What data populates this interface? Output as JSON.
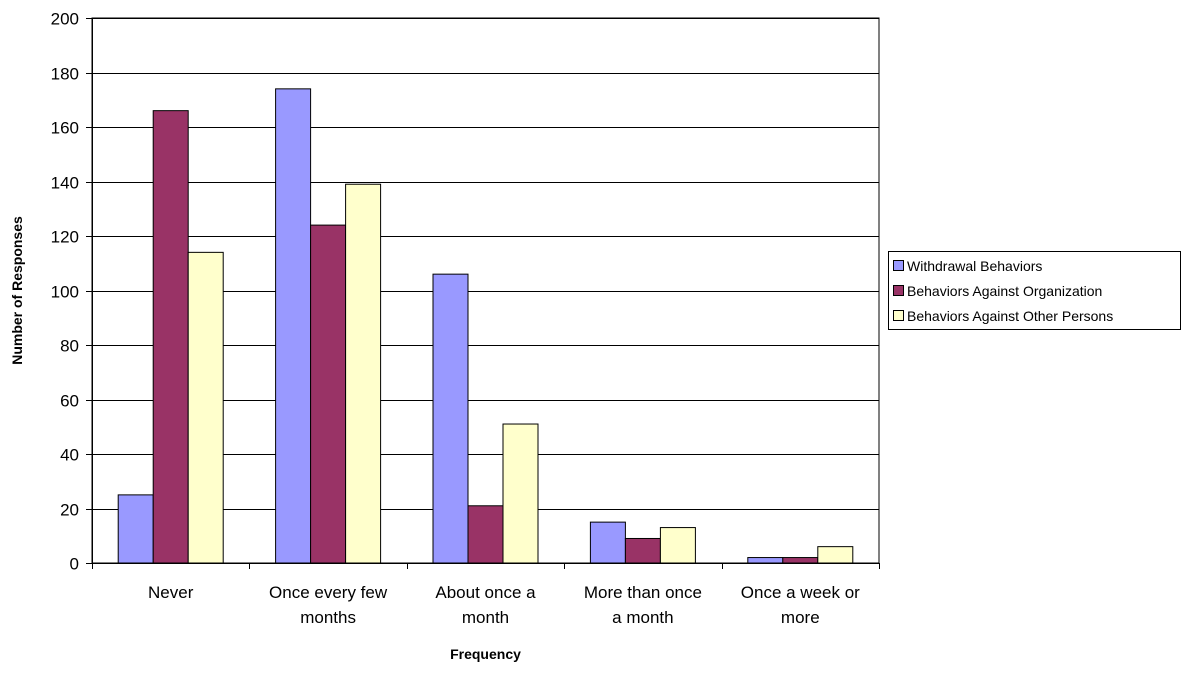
{
  "chart_data": {
    "type": "bar",
    "title": "",
    "xlabel": "Frequency",
    "ylabel": "Number of Responses",
    "ylim": [
      0,
      200
    ],
    "ytick_step": 20,
    "yticks": [
      "0",
      "20",
      "40",
      "60",
      "80",
      "100",
      "120",
      "140",
      "160",
      "180",
      "200"
    ],
    "grid": true,
    "legend_position": "right",
    "categories": [
      [
        "Never"
      ],
      [
        "Once every few",
        "months"
      ],
      [
        "About once a",
        "month"
      ],
      [
        "More than once",
        "a month"
      ],
      [
        "Once a week or",
        "more"
      ]
    ],
    "series": [
      {
        "name": "Withdrawal Behaviors",
        "color": "#9999ff",
        "values": [
          25,
          174,
          106,
          15,
          2
        ]
      },
      {
        "name": "Behaviors Against Organization",
        "color": "#993366",
        "values": [
          166,
          124,
          21,
          9,
          2
        ]
      },
      {
        "name": "Behaviors Against Other Persons",
        "color": "#ffffcc",
        "values": [
          114,
          139,
          51,
          13,
          6
        ]
      }
    ]
  }
}
